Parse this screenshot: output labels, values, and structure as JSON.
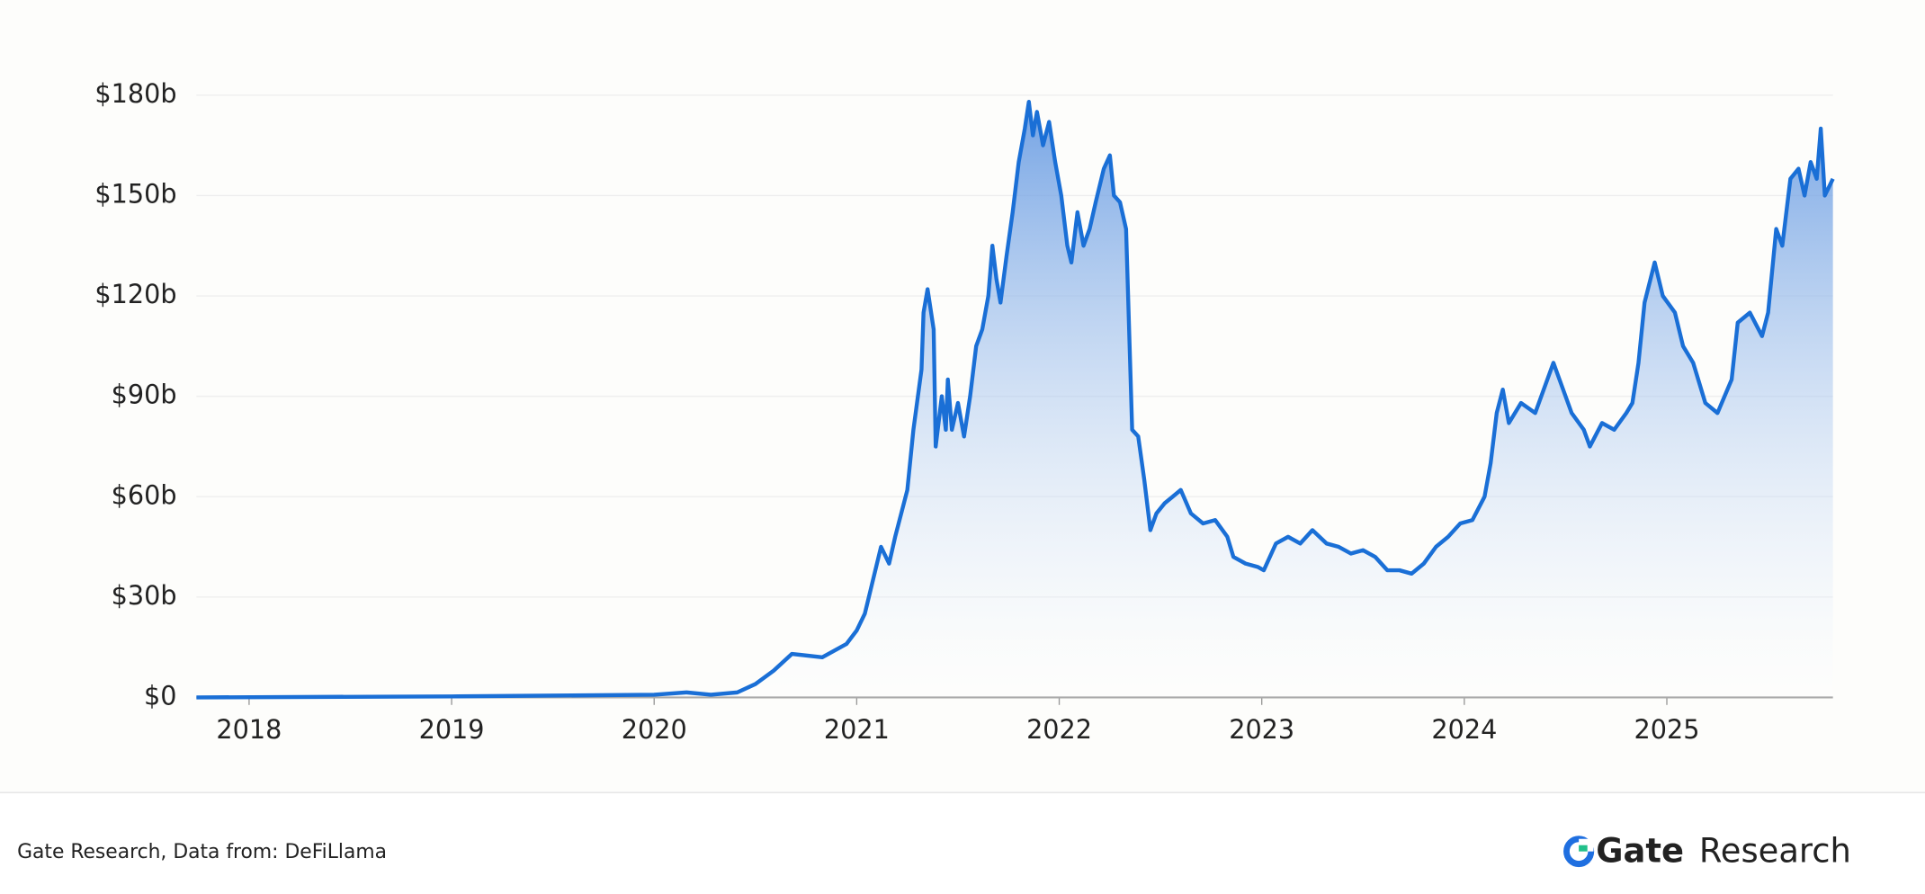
{
  "chart_data": {
    "type": "area",
    "x": [
      2017.74,
      2019.0,
      2020.0,
      2020.16,
      2020.28,
      2020.41,
      2020.5,
      2020.59,
      2020.68,
      2020.83,
      2020.95,
      2021.0,
      2021.04,
      2021.08,
      2021.12,
      2021.16,
      2021.19,
      2021.22,
      2021.25,
      2021.28,
      2021.32,
      2021.33,
      2021.35,
      2021.38,
      2021.39,
      2021.42,
      2021.44,
      2021.45,
      2021.47,
      2021.5,
      2021.53,
      2021.56,
      2021.59,
      2021.62,
      2021.65,
      2021.67,
      2021.69,
      2021.71,
      2021.74,
      2021.77,
      2021.8,
      2021.83,
      2021.85,
      2021.87,
      2021.89,
      2021.92,
      2021.95,
      2021.98,
      2022.01,
      2022.04,
      2022.06,
      2022.09,
      2022.12,
      2022.15,
      2022.18,
      2022.22,
      2022.25,
      2022.27,
      2022.3,
      2022.33,
      2022.36,
      2022.39,
      2022.42,
      2022.45,
      2022.48,
      2022.52,
      2022.56,
      2022.6,
      2022.65,
      2022.71,
      2022.77,
      2022.83,
      2022.86,
      2022.92,
      2022.98,
      2023.01,
      2023.07,
      2023.13,
      2023.19,
      2023.25,
      2023.32,
      2023.38,
      2023.44,
      2023.5,
      2023.56,
      2023.62,
      2023.68,
      2023.74,
      2023.8,
      2023.86,
      2023.92,
      2023.98,
      2024.04,
      2024.1,
      2024.13,
      2024.16,
      2024.19,
      2024.22,
      2024.28,
      2024.35,
      2024.41,
      2024.44,
      2024.47,
      2024.53,
      2024.59,
      2024.62,
      2024.68,
      2024.74,
      2024.8,
      2024.83,
      2024.86,
      2024.89,
      2024.94,
      2024.98,
      2025.04,
      2025.08,
      2025.13,
      2025.19,
      2025.25,
      2025.32,
      2025.35,
      2025.41,
      2025.47,
      2025.5,
      2025.54,
      2025.57,
      2025.61,
      2025.65,
      2025.68,
      2025.71,
      2025.74,
      2025.76,
      2025.78,
      2025.82
    ],
    "values": [
      0,
      0.3,
      0.8,
      1.5,
      0.8,
      1.5,
      4,
      8,
      13,
      12,
      16,
      20,
      25,
      35,
      45,
      40,
      48,
      55,
      62,
      80,
      98,
      115,
      122,
      110,
      75,
      90,
      80,
      95,
      80,
      88,
      78,
      90,
      105,
      110,
      120,
      135,
      125,
      118,
      132,
      145,
      160,
      170,
      178,
      168,
      175,
      165,
      172,
      160,
      150,
      135,
      130,
      145,
      135,
      140,
      148,
      158,
      162,
      150,
      148,
      140,
      80,
      78,
      65,
      50,
      55,
      58,
      60,
      62,
      55,
      52,
      53,
      48,
      42,
      40,
      39,
      38,
      46,
      48,
      46,
      50,
      46,
      45,
      43,
      44,
      42,
      38,
      38,
      37,
      40,
      45,
      48,
      52,
      53,
      60,
      70,
      85,
      92,
      82,
      88,
      85,
      95,
      100,
      95,
      85,
      80,
      75,
      82,
      80,
      85,
      88,
      100,
      118,
      130,
      120,
      115,
      105,
      100,
      88,
      85,
      95,
      112,
      115,
      108,
      115,
      140,
      135,
      155,
      158,
      150,
      160,
      155,
      170,
      150,
      155
    ],
    "color": "#1a6fd6",
    "xlim": [
      2017.74,
      2025.82
    ],
    "xticks": [
      2018,
      2019,
      2020,
      2021,
      2022,
      2023,
      2024,
      2025
    ],
    "ylim": [
      0,
      180
    ],
    "yticks": [
      {
        "value": 0,
        "label": "$0"
      },
      {
        "value": 30,
        "label": "$30b"
      },
      {
        "value": 60,
        "label": "$60b"
      },
      {
        "value": 90,
        "label": "$90b"
      },
      {
        "value": 120,
        "label": "$120b"
      },
      {
        "value": 150,
        "label": "$150b"
      },
      {
        "value": 180,
        "label": "$180b"
      }
    ],
    "grid": true
  },
  "footer": {
    "source": "Gate Research, Data from:  DeFiLlama",
    "brand": "Gate",
    "brand_suffix": "Research"
  }
}
